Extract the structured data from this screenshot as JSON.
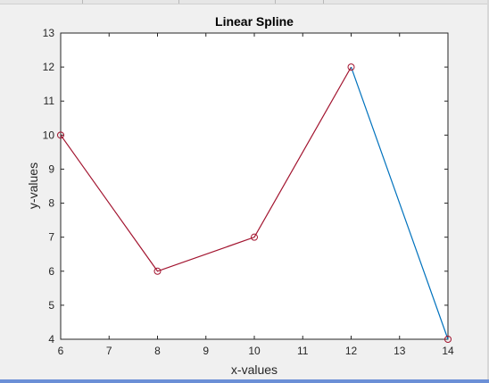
{
  "chart_data": {
    "type": "line",
    "title": "Linear Spline",
    "xlabel": "x-values",
    "ylabel": "y-values",
    "xlim": [
      6,
      14
    ],
    "ylim": [
      4,
      13
    ],
    "xticks": [
      6,
      7,
      8,
      9,
      10,
      11,
      12,
      13,
      14
    ],
    "yticks": [
      4,
      5,
      6,
      7,
      8,
      9,
      10,
      11,
      12,
      13
    ],
    "grid": false,
    "series": [
      {
        "style": "line",
        "color": "#a2142f",
        "x": [
          6,
          8,
          10,
          12
        ],
        "y": [
          10,
          6,
          7,
          12
        ]
      },
      {
        "style": "line",
        "color": "#0072bd",
        "x": [
          12,
          14
        ],
        "y": [
          12,
          4
        ]
      },
      {
        "style": "markers",
        "marker": "circle",
        "color": "#a2142f",
        "x": [
          6,
          8,
          10,
          12,
          14
        ],
        "y": [
          10,
          6,
          7,
          12,
          4
        ]
      }
    ]
  }
}
